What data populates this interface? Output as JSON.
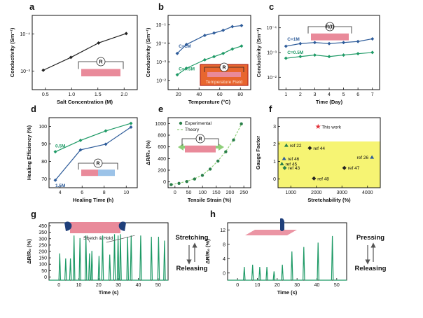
{
  "colors": {
    "black": "#222222",
    "blue": "#2e5c9a",
    "green": "#1e9a66",
    "dark_green": "#2a7f4a",
    "legend_green": "#8fcf7a",
    "pink": "#e98a9a",
    "light_blue": "#9cc3e8",
    "yellow": "#f4f25a",
    "red": "#e2323a",
    "hand_blue": "#1f3f7a"
  },
  "chart_data": [
    {
      "id": "a",
      "panel_label": "a",
      "type": "line",
      "xlabel": "Salt Concentration (M)",
      "ylabel": "Conductivity (Sm⁻¹)",
      "x_ticks": [
        "0.5",
        "1.0",
        "1.5",
        "2.0"
      ],
      "y_ticks": [
        "10⁻³",
        "10⁻⁴"
      ],
      "y_scale": "log",
      "xlim": [
        0.3,
        2.2
      ],
      "ylim": [
        0.0001,
        0.02
      ],
      "series": [
        {
          "x": [
            0.5,
            1.0,
            1.5,
            2.0
          ],
          "y": [
            0.0004,
            0.001,
            0.0028,
            0.0055
          ],
          "color": "black"
        }
      ],
      "inset": {
        "symbol": "R"
      }
    },
    {
      "id": "b",
      "panel_label": "b",
      "type": "line",
      "xlabel": "Temperature (°C)",
      "ylabel": "Conductivity (Sm⁻¹)",
      "x_ticks": [
        "20",
        "40",
        "60",
        "80"
      ],
      "y_ticks": [
        "10⁻²",
        "10⁻³",
        "10⁻⁴",
        "10⁻⁵"
      ],
      "y_scale": "log",
      "xlim": [
        0,
        90
      ],
      "ylim": [
        1e-05,
        0.03
      ],
      "series": [
        {
          "name": "C=1M",
          "x": [
            10,
            20,
            40,
            50,
            60,
            70,
            80
          ],
          "y": [
            0.0005,
            0.0013,
            0.0035,
            0.0045,
            0.006,
            0.009,
            0.01
          ],
          "color": "blue"
        },
        {
          "name": "C=0.5M",
          "x": [
            10,
            20,
            40,
            50,
            60,
            70,
            80
          ],
          "y": [
            5e-05,
            0.0001,
            0.00025,
            0.00035,
            0.0005,
            0.0008,
            0.0011
          ],
          "color": "green"
        }
      ],
      "inset": {
        "symbol": "R",
        "caption": "Temperature Field"
      }
    },
    {
      "id": "c",
      "panel_label": "c",
      "type": "line",
      "xlabel": "Time (Day)",
      "ylabel": "Conductivity (Sm⁻¹)",
      "x_ticks": [
        "1",
        "2",
        "3",
        "4",
        "5",
        "6",
        "7"
      ],
      "y_ticks": [
        "10⁻²",
        "10⁻³",
        "10⁻⁴"
      ],
      "y_scale": "log",
      "xlim": [
        0.5,
        7.5
      ],
      "ylim": [
        3e-05,
        0.01
      ],
      "series": [
        {
          "name": "C=1M",
          "x": [
            1,
            2,
            3,
            4,
            5,
            6,
            7
          ],
          "y": [
            0.0009,
            0.0011,
            0.0012,
            0.0011,
            0.0012,
            0.0013,
            0.0016
          ],
          "color": "blue"
        },
        {
          "name": "C=0.5M",
          "x": [
            1,
            2,
            3,
            4,
            5,
            6,
            7
          ],
          "y": [
            0.00035,
            0.0004,
            0.00045,
            0.0004,
            0.00045,
            0.0005,
            0.00055
          ],
          "color": "green"
        }
      ],
      "inset": {
        "symbol": "R(t)"
      }
    },
    {
      "id": "d",
      "panel_label": "d",
      "type": "line",
      "xlabel": "Healing Time (h)",
      "ylabel": "Healing Efficiency (%)",
      "x_ticks": [
        "4",
        "6",
        "8",
        "10"
      ],
      "y_ticks": [
        "70",
        "80",
        "90",
        "100"
      ],
      "xlim": [
        3.5,
        10.5
      ],
      "ylim": [
        63,
        100
      ],
      "series": [
        {
          "name": "0.5M",
          "x": [
            4,
            6,
            8,
            10
          ],
          "y": [
            82,
            88,
            93,
            97
          ],
          "color": "green"
        },
        {
          "name": "1.5M",
          "x": [
            4,
            6,
            8,
            10
          ],
          "y": [
            67,
            83,
            86,
            95
          ],
          "color": "blue"
        }
      ],
      "inset": {
        "symbol": "R"
      }
    },
    {
      "id": "e",
      "panel_label": "e",
      "type": "scatter",
      "xlabel": "Tensile Strain (%)",
      "ylabel": "ΔR/R₀ (%)",
      "x_ticks": [
        "0",
        "50",
        "100",
        "150",
        "200",
        "250"
      ],
      "y_ticks": [
        "0",
        "200",
        "400",
        "600",
        "800",
        "1000"
      ],
      "xlim": [
        -10,
        255
      ],
      "ylim": [
        -50,
        1080
      ],
      "series": [
        {
          "name": "Experimental",
          "x": [
            0,
            25,
            50,
            75,
            100,
            125,
            150,
            175,
            200,
            225
          ],
          "y": [
            0,
            20,
            50,
            90,
            150,
            250,
            380,
            530,
            720,
            980
          ],
          "color": "dark_green"
        },
        {
          "name": "Theory",
          "x": [
            0,
            25,
            50,
            75,
            100,
            125,
            150,
            175,
            200,
            225
          ],
          "y": [
            0,
            22,
            55,
            95,
            155,
            255,
            385,
            535,
            725,
            975
          ],
          "color": "legend_green"
        }
      ],
      "inset": {
        "symbol": "R"
      }
    },
    {
      "id": "f",
      "panel_label": "f",
      "type": "scatter",
      "xlabel": "Stretchability (%)",
      "ylabel": "Gauge Factor",
      "x_ticks": [
        "1000",
        "2000",
        "3000",
        "4000"
      ],
      "y_ticks": [
        "0",
        "1",
        "2",
        "3"
      ],
      "xlim": [
        500,
        4200
      ],
      "ylim": [
        -0.5,
        4.8
      ],
      "highlight_band": [
        -0.5,
        3
      ],
      "points": [
        {
          "label": "This work",
          "x": 1950,
          "y": 4.1,
          "marker": "star",
          "color": "red"
        },
        {
          "label": "ref 22",
          "x": 800,
          "y": 2.7,
          "marker": "triangle",
          "color": "dark_green"
        },
        {
          "label": "ref 44",
          "x": 1650,
          "y": 2.5,
          "marker": "diamond",
          "color": "black"
        },
        {
          "label": "ref 46",
          "x": 720,
          "y": 1.7,
          "marker": "triangle",
          "color": "blue"
        },
        {
          "label": "ref 26",
          "x": 3900,
          "y": 1.8,
          "marker": "triangle",
          "color": "blue"
        },
        {
          "label": "ref 45",
          "x": 640,
          "y": 1.3,
          "marker": "triangle",
          "color": "dark_green"
        },
        {
          "label": "ref 43",
          "x": 740,
          "y": 1.0,
          "marker": "diamond",
          "color": "dark_green"
        },
        {
          "label": "ref 47",
          "x": 2900,
          "y": 1.0,
          "marker": "diamond",
          "color": "black"
        },
        {
          "label": "ref 48",
          "x": 1800,
          "y": 0.2,
          "marker": "diamond",
          "color": "black"
        }
      ]
    },
    {
      "id": "g",
      "panel_label": "g",
      "type": "line",
      "xlabel": "Time (s)",
      "ylabel": "ΔR/R₀ (%)",
      "x_ticks": [
        "0",
        "10",
        "20",
        "30",
        "40",
        "50"
      ],
      "y_ticks": [
        "0",
        "50",
        "100",
        "150",
        "200",
        "250",
        "300",
        "350",
        "450"
      ],
      "xlim": [
        0,
        50
      ],
      "ylim": [
        0,
        450
      ],
      "peaks": {
        "t": [
          4.5,
          7,
          9,
          10.5,
          13,
          15.5,
          17,
          18,
          21,
          22.5,
          25.5,
          27.5,
          29,
          30,
          33,
          34.5,
          38.5,
          43,
          46,
          48.5
        ],
        "height": [
          210,
          170,
          170,
          350,
          330,
          350,
          210,
          230,
          190,
          350,
          200,
          360,
          350,
          360,
          340,
          350,
          350,
          340,
          340,
          310
        ]
      },
      "hold_segment": {
        "t": [
          16,
          36
        ],
        "level": 350
      },
      "annotation": "Stretch & Hold",
      "side_top": "Stretching",
      "side_bottom": "Releasing"
    },
    {
      "id": "h",
      "panel_label": "h",
      "type": "line",
      "xlabel": "Time (s)",
      "ylabel": "ΔR/R₀ (%)",
      "x_ticks": [
        "0",
        "10",
        "20",
        "30",
        "40",
        "50"
      ],
      "y_ticks": [
        "0",
        "4",
        "8",
        "12"
      ],
      "xlim": [
        0,
        50
      ],
      "ylim": [
        0,
        13
      ],
      "peaks": {
        "t": [
          7,
          10.5,
          13.5,
          16.5,
          19.5,
          23,
          27,
          32,
          38,
          44
        ],
        "height": [
          3,
          3.5,
          3,
          3,
          2,
          3.5,
          6.5,
          7.5,
          8.5,
          10
        ]
      },
      "side_top": "Pressing",
      "side_bottom": "Releasing"
    }
  ]
}
